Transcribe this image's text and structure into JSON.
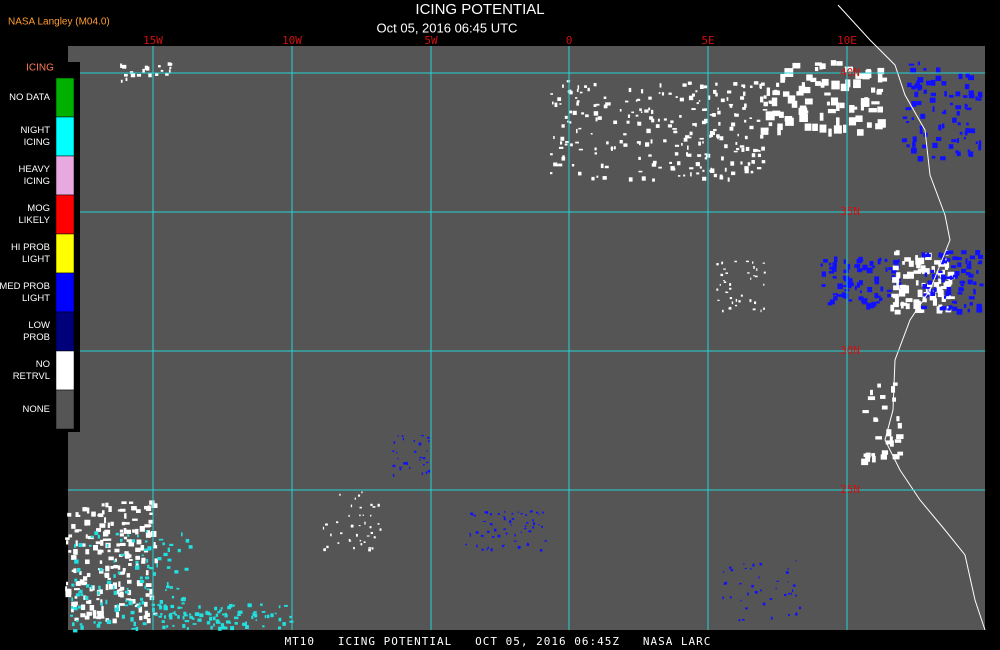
{
  "header": {
    "source": "NASA Langley (M04.0)",
    "title": "ICING POTENTIAL",
    "timestamp": "Oct 05, 2016 06:45 UTC"
  },
  "legend": {
    "title": "ICING",
    "items": [
      {
        "lines": [
          "NO DATA"
        ],
        "color": "#00b000"
      },
      {
        "lines": [
          "NIGHT",
          "ICING"
        ],
        "color": "#00ffff"
      },
      {
        "lines": [
          "HEAVY",
          "ICING"
        ],
        "color": "#e8a8e0"
      },
      {
        "lines": [
          "MOG",
          "LIKELY"
        ],
        "color": "#ff0000"
      },
      {
        "lines": [
          "HI PROB",
          "LIGHT"
        ],
        "color": "#ffff00"
      },
      {
        "lines": [
          "MED PROB",
          "LIGHT"
        ],
        "color": "#0000ff"
      },
      {
        "lines": [
          "LOW",
          "PROB"
        ],
        "color": "#00007a"
      },
      {
        "lines": [
          "NO",
          "RETRVL"
        ],
        "color": "#ffffff"
      },
      {
        "lines": [
          "NONE"
        ],
        "color": "#555555"
      }
    ]
  },
  "map": {
    "lon_labels": [
      "15W",
      "10W",
      "5W",
      "0",
      "5E",
      "10E"
    ],
    "lat_labels": [
      "40N",
      "35N",
      "30N",
      "25N"
    ]
  },
  "footer": "MT10   ICING POTENTIAL   OCT 05, 2016 06:45Z   NASA LARC"
}
